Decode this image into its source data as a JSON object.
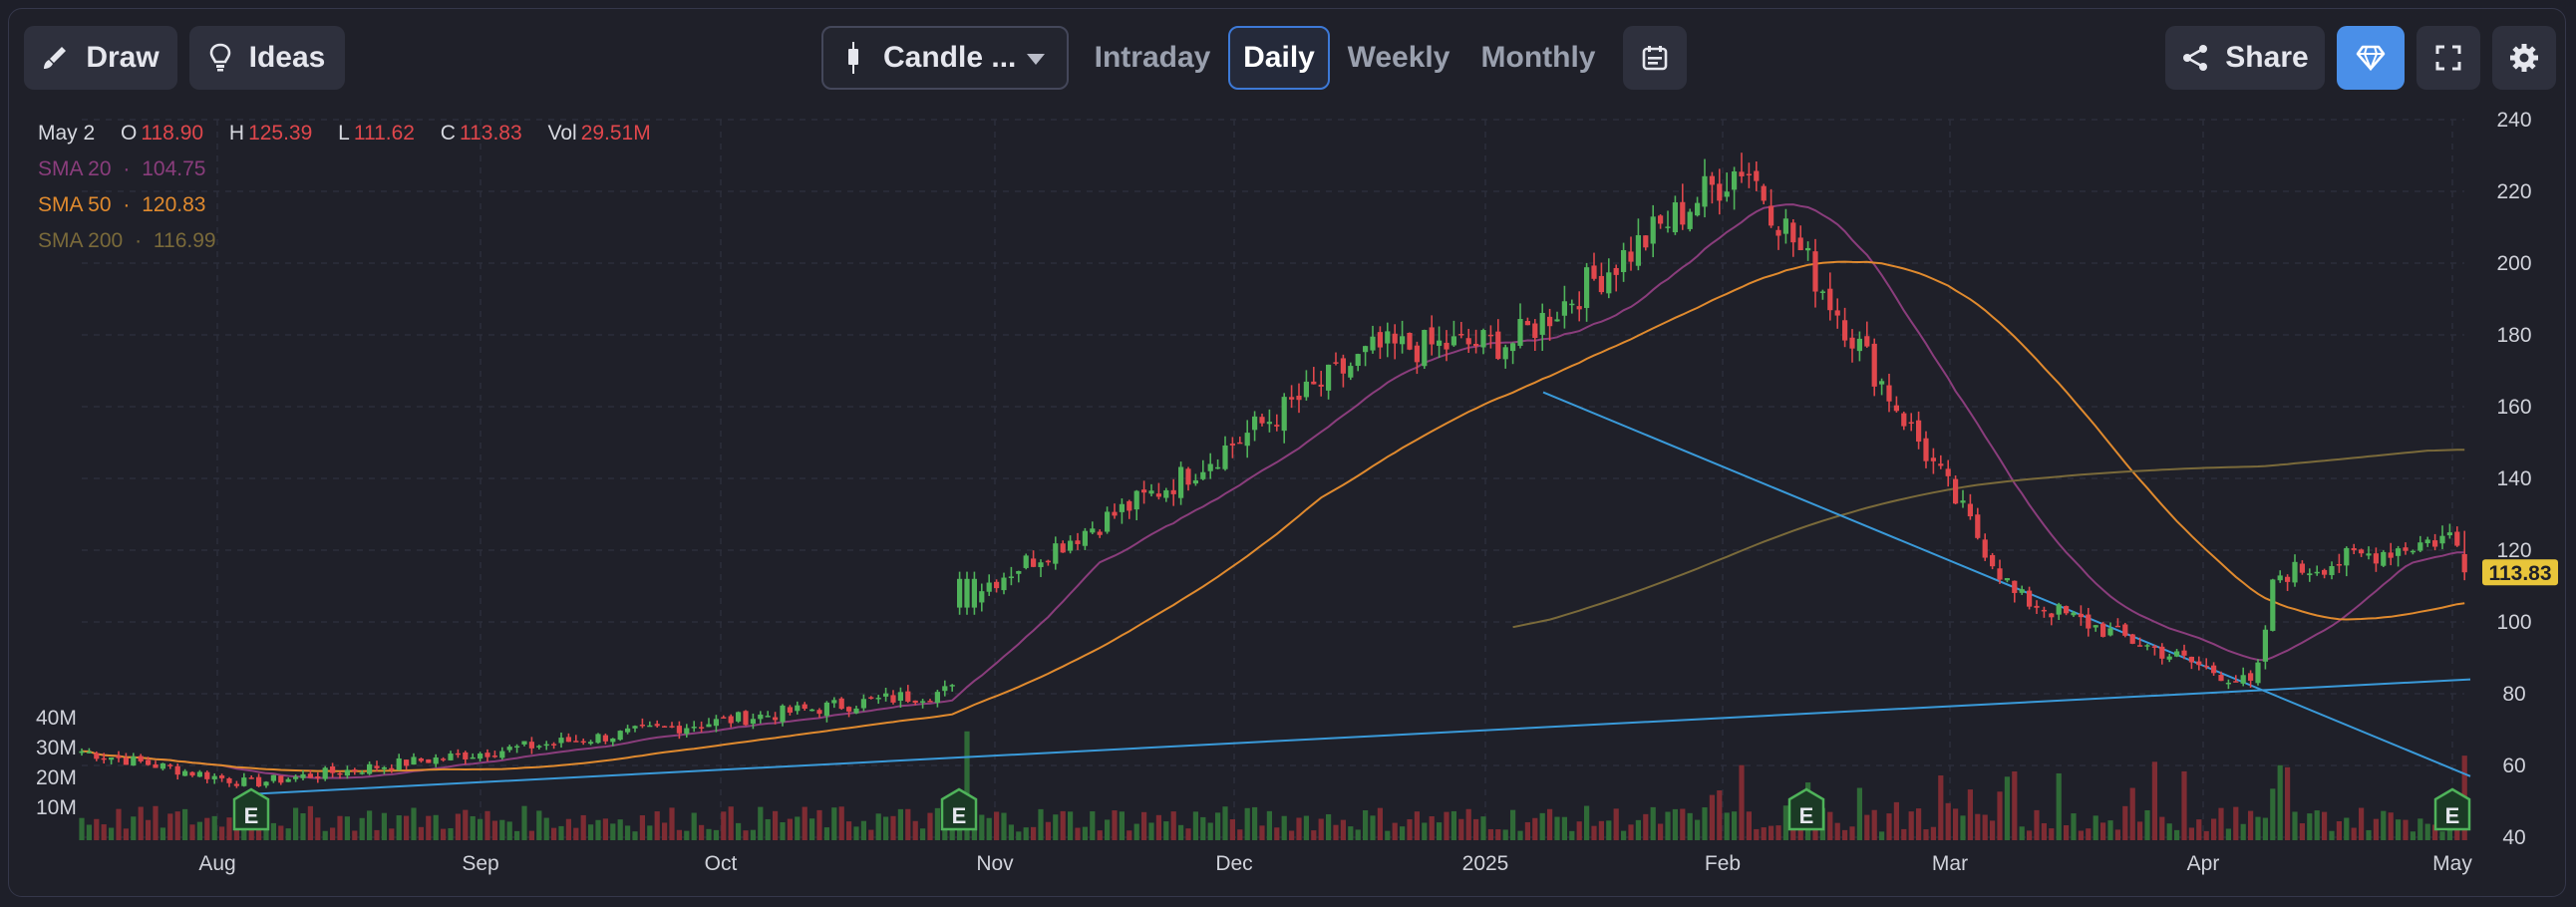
{
  "toolbar": {
    "draw_label": "Draw",
    "ideas_label": "Ideas",
    "chart_type_label": "Candle ...",
    "timeframes": [
      "Intraday",
      "Daily",
      "Weekly",
      "Monthly"
    ],
    "active_timeframe": "Daily",
    "share_label": "Share"
  },
  "legend": {
    "date": "May 2",
    "o_label": "O",
    "o_value": "118.90",
    "h_label": "H",
    "h_value": "125.39",
    "l_label": "L",
    "l_value": "111.62",
    "c_label": "C",
    "c_value": "113.83",
    "vol_label": "Vol",
    "vol_value": "29.51M",
    "sma20_label": "SMA 20",
    "sma20_value": "104.75",
    "sma50_label": "SMA 50",
    "sma50_value": "120.83",
    "sma200_label": "SMA 200",
    "sma200_value": "116.99",
    "separator": "·"
  },
  "colors": {
    "up": "#4fb35a",
    "down": "#e0474c",
    "sma20": "#8a3d7c",
    "sma50": "#e08a2e",
    "sma200": "#7a6a3a",
    "trendline": "#3a9ad9",
    "price_tag": "#e8c53a",
    "accent": "#4a8fe8"
  },
  "chart_data": {
    "type": "candlestick",
    "price_axis": {
      "min": 40,
      "max": 240,
      "ticks": [
        240,
        220,
        200,
        180,
        160,
        140,
        120,
        100,
        80,
        60,
        40
      ]
    },
    "volume_axis": {
      "ticks": [
        "40M",
        "30M",
        "20M",
        "10M"
      ],
      "max": 40
    },
    "x_labels": [
      "Aug",
      "Sep",
      "Oct",
      "Nov",
      "Dec",
      "2025",
      "Feb",
      "Mar",
      "Apr",
      "May"
    ],
    "last_price": "113.83",
    "earnings_marker": "E",
    "earnings_count": 4,
    "key_prices": [
      {
        "date": "Jul 17",
        "close": 64
      },
      {
        "date": "Aug 7",
        "close": 55
      },
      {
        "date": "Oct 30",
        "close": 81
      },
      {
        "date": "Oct 31",
        "close": 108
      },
      {
        "date": "Nov 27",
        "close": 139
      },
      {
        "date": "Dec 20",
        "close": 176
      },
      {
        "date": "Jan 7",
        "close": 178
      },
      {
        "date": "Feb 7",
        "close": 228
      },
      {
        "date": "Mar 10",
        "close": 107
      },
      {
        "date": "Apr 8",
        "close": 82
      },
      {
        "date": "Apr 10",
        "close": 113
      },
      {
        "date": "Apr 30",
        "close": 124
      },
      {
        "date": "May 2",
        "close": 113.83
      }
    ],
    "grid": true
  }
}
